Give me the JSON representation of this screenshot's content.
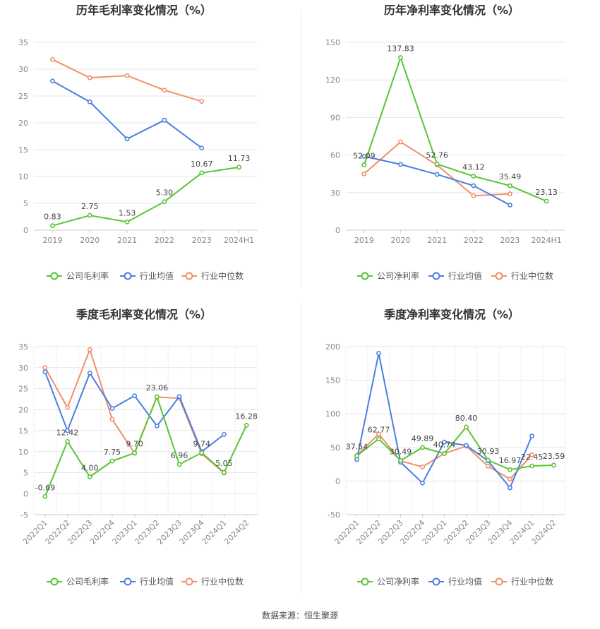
{
  "source_text": "数据来源：恒生聚源",
  "colors": {
    "company": "#5ac435",
    "avg": "#4a7fe0",
    "median": "#f0906a"
  },
  "chart_data": [
    {
      "type": "line",
      "title": "历年毛利率变化情况（%）",
      "categories": [
        "2019",
        "2020",
        "2021",
        "2022",
        "2023",
        "2024H1"
      ],
      "yticks": [
        "0",
        "5",
        "10",
        "15",
        "20",
        "25",
        "30",
        "35"
      ],
      "ylim": [
        0,
        35
      ],
      "legend": [
        "公司毛利率",
        "行业均值",
        "行业中位数"
      ],
      "series": [
        {
          "name": "公司毛利率",
          "values": [
            0.83,
            2.75,
            1.53,
            5.3,
            10.67,
            11.73
          ],
          "labels": [
            "0.83",
            "2.75",
            "1.53",
            "5.30",
            "10.67",
            "11.73"
          ]
        },
        {
          "name": "行业均值",
          "values": [
            27.8,
            23.9,
            17.0,
            20.5,
            15.3,
            null
          ]
        },
        {
          "name": "行业中位数",
          "values": [
            31.8,
            28.4,
            28.8,
            26.1,
            24.0,
            null
          ]
        }
      ]
    },
    {
      "type": "line",
      "title": "历年净利率变化情况（%）",
      "categories": [
        "2019",
        "2020",
        "2021",
        "2022",
        "2023",
        "2024H1"
      ],
      "yticks": [
        "0",
        "30",
        "60",
        "90",
        "120",
        "150"
      ],
      "ylim": [
        0,
        150
      ],
      "legend": [
        "公司净利率",
        "行业均值",
        "行业中位数"
      ],
      "series": [
        {
          "name": "公司净利率",
          "values": [
            52.09,
            137.83,
            52.76,
            43.12,
            35.49,
            23.13
          ],
          "labels": [
            "52.09",
            "137.83",
            "52.76",
            "43.12",
            "35.49",
            "23.13"
          ]
        },
        {
          "name": "行业均值",
          "values": [
            59.0,
            52.5,
            44.5,
            35.5,
            20.0,
            null
          ]
        },
        {
          "name": "行业中位数",
          "values": [
            45.0,
            70.5,
            52.0,
            27.5,
            29.0,
            null
          ]
        }
      ]
    },
    {
      "type": "line",
      "title": "季度毛利率变化情况（%）",
      "categories": [
        "2022Q1",
        "2022Q2",
        "2022Q3",
        "2022Q4",
        "2023Q1",
        "2023Q2",
        "2023Q3",
        "2023Q4",
        "2024Q1",
        "2024Q2"
      ],
      "yticks": [
        "-5",
        "0",
        "5",
        "10",
        "15",
        "20",
        "25",
        "30",
        "35"
      ],
      "ylim": [
        -5,
        35
      ],
      "legend": [
        "公司毛利率",
        "行业均值",
        "行业中位数"
      ],
      "series": [
        {
          "name": "公司毛利率",
          "values": [
            -0.69,
            12.42,
            4.0,
            7.75,
            9.7,
            23.06,
            6.96,
            9.74,
            5.05,
            16.28
          ],
          "labels": [
            "-0.69",
            "12.42",
            "4.00",
            "7.75",
            "9.70",
            "23.06",
            "6.96",
            "9.74",
            "5.05",
            "16.28"
          ]
        },
        {
          "name": "行业均值",
          "values": [
            29.0,
            15.0,
            28.7,
            20.3,
            23.3,
            16.1,
            23.1,
            10.0,
            14.1,
            null
          ]
        },
        {
          "name": "行业中位数",
          "values": [
            30.0,
            20.5,
            34.3,
            17.7,
            9.6,
            23.0,
            22.7,
            9.5,
            4.9,
            null
          ]
        }
      ]
    },
    {
      "type": "line",
      "title": "季度净利率变化情况（%）",
      "categories": [
        "2022Q1",
        "2022Q2",
        "2022Q3",
        "2022Q4",
        "2023Q1",
        "2023Q2",
        "2023Q3",
        "2023Q4",
        "2024Q1",
        "2024Q2"
      ],
      "yticks": [
        "-50",
        "0",
        "50",
        "100",
        "150",
        "200"
      ],
      "ylim": [
        -50,
        200
      ],
      "legend": [
        "公司净利率",
        "行业均值",
        "行业中位数"
      ],
      "series": [
        {
          "name": "公司净利率",
          "values": [
            37.54,
            62.77,
            30.49,
            49.89,
            40.74,
            80.4,
            30.93,
            16.97,
            22.45,
            23.59
          ],
          "labels": [
            "37.54",
            "62.77",
            "30.49",
            "49.89",
            "40.74",
            "80.40",
            "30.93",
            "16.97",
            "22.45",
            "23.59"
          ]
        },
        {
          "name": "行业均值",
          "values": [
            32.0,
            190.0,
            28.0,
            -3.0,
            58.0,
            53.0,
            30.0,
            -10.0,
            67.0,
            null
          ]
        },
        {
          "name": "行业中位数",
          "values": [
            38.0,
            70.0,
            30.0,
            21.0,
            41.0,
            52.0,
            22.0,
            3.0,
            39.0,
            null
          ]
        }
      ]
    }
  ]
}
